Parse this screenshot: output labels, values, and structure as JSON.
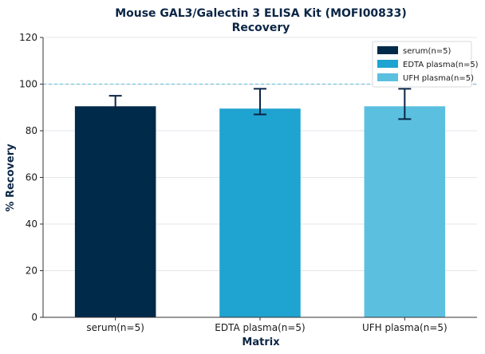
{
  "chart_data": {
    "type": "bar",
    "title": [
      "Mouse GAL3/Galectin 3 ELISA Kit (MOFI00833)",
      "Recovery"
    ],
    "xlabel": "Matrix",
    "ylabel": "% Recovery",
    "categories": [
      "serum(n=5)",
      "EDTA plasma(n=5)",
      "UFH plasma(n=5)"
    ],
    "values": [
      90.5,
      89.5,
      90.5
    ],
    "error_low": [
      90,
      87,
      85
    ],
    "error_high": [
      95,
      98,
      98
    ],
    "colors": [
      "#002a4a",
      "#1fa3d1",
      "#5bc0e0"
    ],
    "ylim": [
      0,
      120
    ],
    "yticks": [
      0,
      20,
      40,
      60,
      80,
      100,
      120
    ],
    "reference_line": 100,
    "grid": true,
    "legend_position": "top-right",
    "legend": [
      "serum(n=5)",
      "EDTA plasma(n=5)",
      "UFH plasma(n=5)"
    ]
  }
}
